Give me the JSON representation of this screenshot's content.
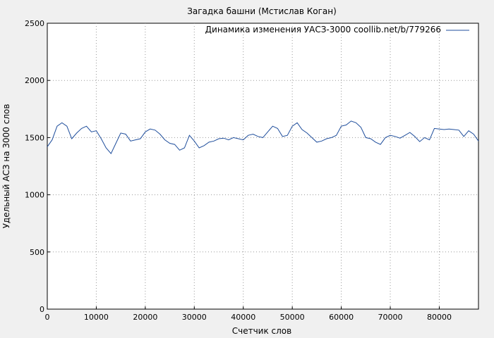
{
  "chart_data": {
    "type": "line",
    "title": "Загадка башни (Мстислав Коган)",
    "xlabel": "Счетчик слов",
    "ylabel": "Удельный АСЗ на 3000 слов",
    "xlim": [
      0,
      88000
    ],
    "ylim": [
      0,
      2500
    ],
    "xticks": [
      0,
      10000,
      20000,
      30000,
      40000,
      50000,
      60000,
      70000,
      80000
    ],
    "yticks": [
      0,
      500,
      1000,
      1500,
      2000,
      2500
    ],
    "grid": true,
    "legend": "top-right",
    "series": [
      {
        "name": "Динамика изменения УАСЗ-3000 coollib.net/b/779266",
        "color": "#1f4e9c",
        "x": [
          0,
          1000,
          2000,
          3000,
          4000,
          5000,
          6000,
          7000,
          8000,
          9000,
          10000,
          11000,
          12000,
          13000,
          14000,
          15000,
          16000,
          17000,
          18000,
          19000,
          20000,
          21000,
          22000,
          23000,
          24000,
          25000,
          26000,
          27000,
          28000,
          29000,
          30000,
          31000,
          32000,
          33000,
          34000,
          35000,
          36000,
          37000,
          38000,
          39000,
          40000,
          41000,
          42000,
          43000,
          44000,
          45000,
          46000,
          47000,
          48000,
          49000,
          50000,
          51000,
          52000,
          53000,
          54000,
          55000,
          56000,
          57000,
          58000,
          59000,
          60000,
          61000,
          62000,
          63000,
          64000,
          65000,
          66000,
          67000,
          68000,
          69000,
          70000,
          71000,
          72000,
          73000,
          74000,
          75000,
          76000,
          77000,
          78000,
          79000,
          80000,
          81000,
          82000,
          83000,
          84000,
          85000,
          86000,
          87000,
          88000
        ],
        "values": [
          1420,
          1480,
          1600,
          1630,
          1600,
          1490,
          1540,
          1580,
          1600,
          1550,
          1560,
          1490,
          1410,
          1360,
          1450,
          1540,
          1530,
          1470,
          1480,
          1490,
          1550,
          1575,
          1565,
          1530,
          1480,
          1450,
          1440,
          1390,
          1410,
          1520,
          1470,
          1410,
          1430,
          1460,
          1470,
          1490,
          1495,
          1480,
          1500,
          1490,
          1480,
          1520,
          1530,
          1510,
          1500,
          1550,
          1600,
          1580,
          1510,
          1520,
          1600,
          1630,
          1570,
          1540,
          1500,
          1460,
          1470,
          1490,
          1500,
          1520,
          1600,
          1610,
          1645,
          1630,
          1590,
          1500,
          1490,
          1460,
          1440,
          1500,
          1520,
          1510,
          1495,
          1520,
          1545,
          1510,
          1465,
          1500,
          1480,
          1580,
          1575,
          1570,
          1575,
          1570,
          1565,
          1510,
          1560,
          1530,
          1470
        ]
      }
    ]
  }
}
